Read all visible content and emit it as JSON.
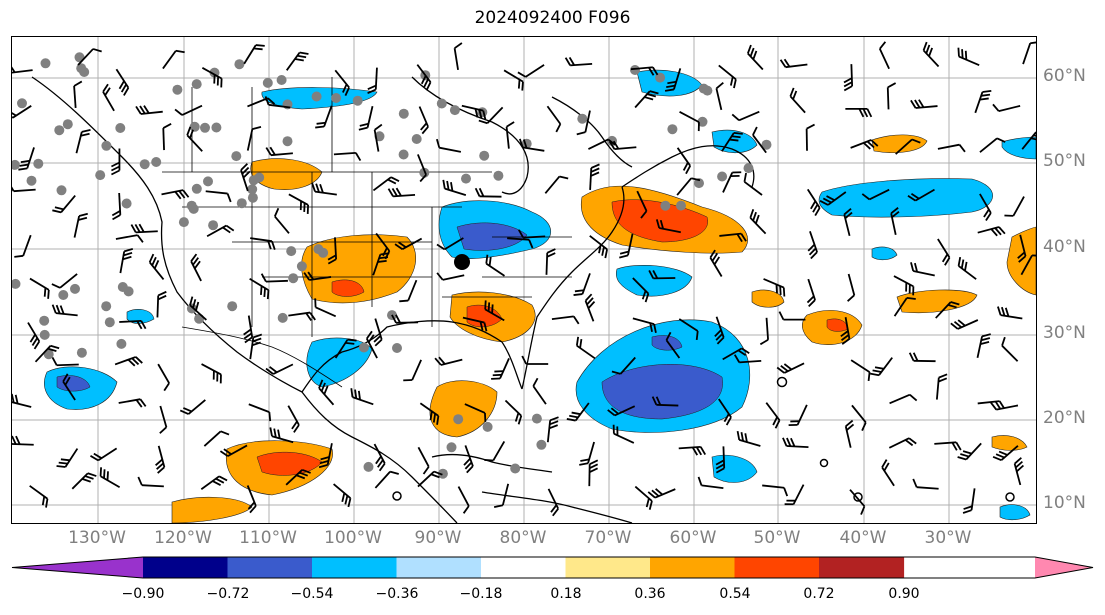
{
  "title": "2024092400 F096",
  "latitude_labels": [
    "60°N",
    "50°N",
    "40°N",
    "30°N",
    "20°N",
    "10°N"
  ],
  "longitude_labels": [
    "130°W",
    "120°W",
    "110°W",
    "100°W",
    "90°W",
    "80°W",
    "70°W",
    "60°W",
    "50°W",
    "40°W",
    "30°W"
  ],
  "colorbar": {
    "ticks": [
      "−0.90",
      "−0.72",
      "−0.54",
      "−0.36",
      "−0.18",
      "0.18",
      "0.36",
      "0.54",
      "0.72",
      "0.90"
    ],
    "colors": [
      "#9932cc",
      "#00008b",
      "#3a5bcc",
      "#00bfff",
      "#b0e0ff",
      "#ffffff",
      "#ffe88a",
      "#ffa500",
      "#ff4500",
      "#b22222",
      "#ff88b0"
    ]
  },
  "colors": {
    "positive_anomaly": "#ffa500",
    "strong_positive": "#ff4500",
    "negative_anomaly": "#00bfff",
    "strong_negative": "#3a5bcc",
    "observation_dots": "#808080",
    "grid": "#b0b0b0"
  }
}
